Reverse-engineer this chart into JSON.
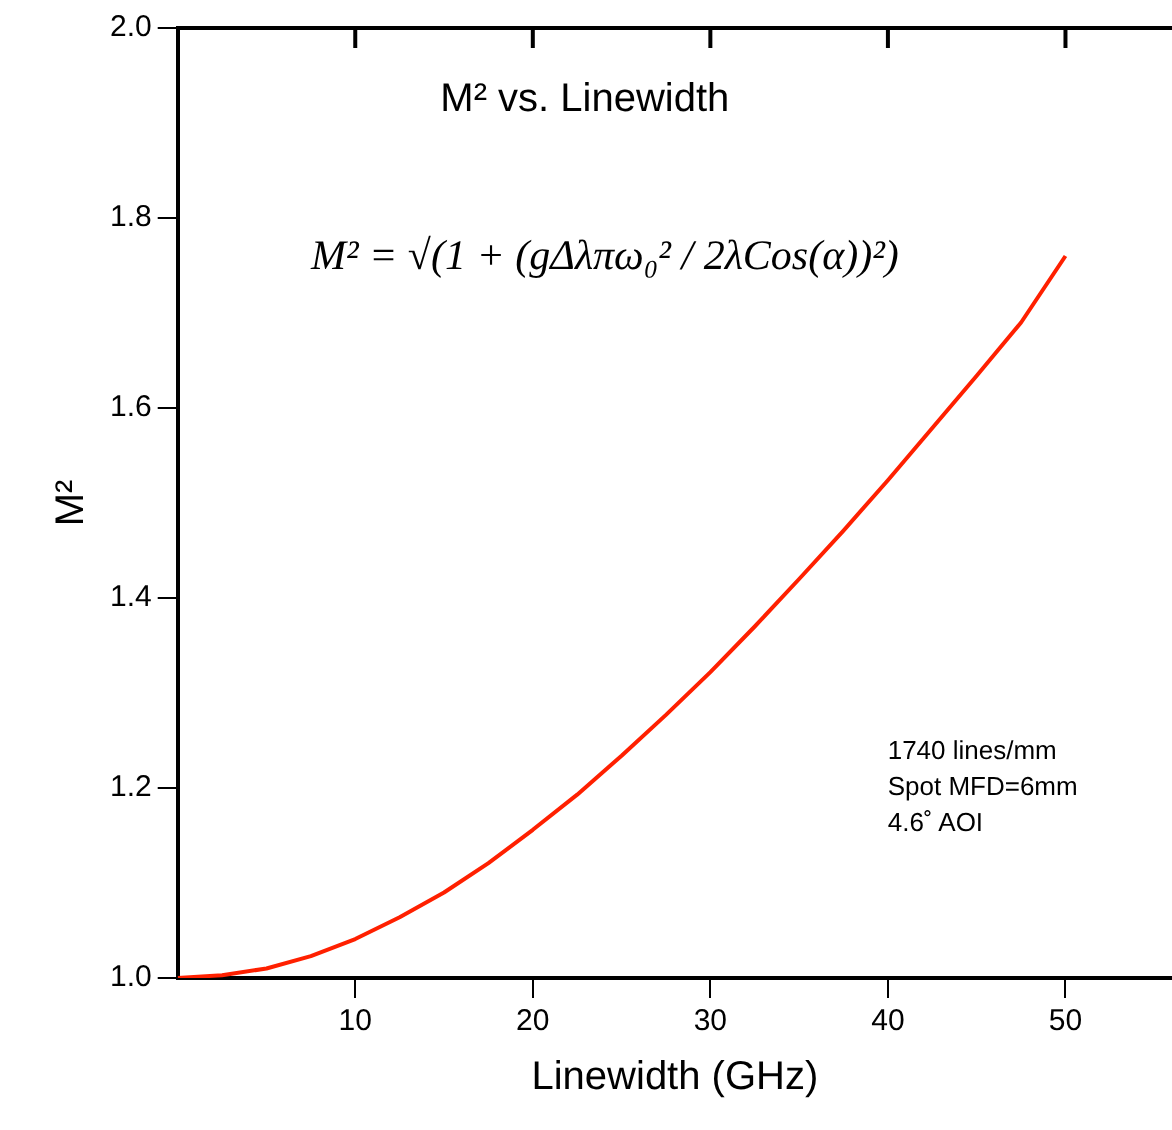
{
  "chart_data": {
    "type": "line",
    "title": "M² vs. Linewidth",
    "xlabel": "Linewidth (GHz)",
    "ylabel": "M²",
    "x": [
      0,
      2.5,
      5,
      7.5,
      10,
      12.5,
      15,
      17.5,
      20,
      22.5,
      25,
      27.5,
      30,
      32.5,
      35,
      37.5,
      40,
      42.5,
      45,
      47.5,
      50
    ],
    "series": [
      {
        "color": "#ff2000",
        "values": [
          1.0,
          1.003,
          1.01,
          1.023,
          1.041,
          1.064,
          1.09,
          1.121,
          1.156,
          1.193,
          1.234,
          1.277,
          1.322,
          1.37,
          1.42,
          1.471,
          1.524,
          1.579,
          1.634,
          1.69,
          1.76
        ]
      }
    ],
    "xlim": [
      0,
      56
    ],
    "xticks": [
      10,
      20,
      30,
      40,
      50
    ],
    "ylim": [
      1.0,
      2.0
    ],
    "yticks": [
      {
        "value": 1.0,
        "label": "1.0"
      },
      {
        "value": 1.2,
        "label": "1.2"
      },
      {
        "value": 1.4,
        "label": "1.4"
      },
      {
        "value": 1.6,
        "label": "1.6"
      },
      {
        "value": 1.8,
        "label": "1.8"
      },
      {
        "value": 2.0,
        "label": "2.0"
      }
    ],
    "annotations": [
      "M² = √(1 + (gΔλπω₀² / 2λCos(α))²)",
      "1740 lines/mm",
      "Spot MFD=6mm",
      "4.6˚ AOI"
    ],
    "grid": false,
    "legend": false,
    "marker": "none",
    "line_style": "solid"
  }
}
